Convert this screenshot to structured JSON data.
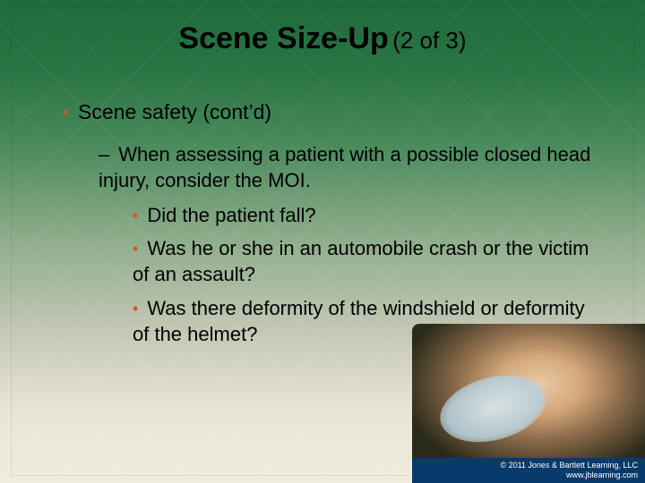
{
  "background": {
    "gradient_stops": [
      "#1e6b3a",
      "#2a7544",
      "#4a8a5c",
      "#8fae8c",
      "#c8c9b8",
      "#e8e5d8",
      "#f0ecdf"
    ],
    "accent_bullet_color": "#c75a2a",
    "footer_bg": "#083a6b"
  },
  "title": {
    "main": "Scene Size-Up",
    "sub": "(2 of 3)",
    "main_fontsize": 34,
    "sub_fontsize": 26
  },
  "content": {
    "l1": "Scene safety (cont’d)",
    "l2": "When assessing a patient with a possible closed head injury, consider the MOI.",
    "l3": [
      "Did the patient fall?",
      "Was he or she in an automobile crash or the victim of an assault?",
      "Was there deformity of the windshield or deformity of the helmet?"
    ],
    "body_fontsize": 23
  },
  "footer": {
    "copyright": "© 2011 Jones & Bartlett Learning, LLC",
    "url": "www.jblearning.com"
  }
}
